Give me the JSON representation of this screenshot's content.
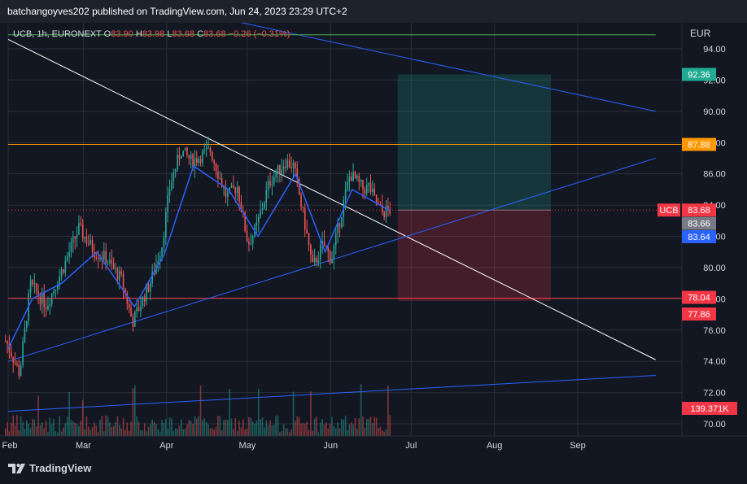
{
  "header": {
    "publisher_text": "batchangoyves202 published on TradingView.com, Jun 24, 2023 23:29 UTC+2"
  },
  "legend": {
    "symbol": "UCB, 1h, EURONEXT",
    "o_label": "O",
    "o_value": "83.90",
    "h_label": "H",
    "h_value": "83.98",
    "l_label": "L",
    "l_value": "83.68",
    "c_label": "C",
    "c_value": "83.68",
    "change": "−0.26 (−0.31%)"
  },
  "footer": {
    "brand": "TradingView"
  },
  "colors": {
    "up": "#26a69a",
    "down": "#ef5350",
    "background": "#131722",
    "grid": "#2a2e39",
    "axis_text": "#d1d4dc",
    "orange": "#ff9800",
    "red_line": "#f23645",
    "blue_line": "#2962ff",
    "white_line": "#ffffff",
    "green_line": "#4caf50"
  },
  "chart_data": {
    "type": "candlestick",
    "symbol": "UCB",
    "interval": "1h",
    "exchange": "EURONEXT",
    "currency": "EUR",
    "y_ticks": [
      "94.00",
      "92.00",
      "90.00",
      "88.00",
      "86.00",
      "84.00",
      "82.00",
      "80.00",
      "78.00",
      "76.00",
      "74.00",
      "72.00",
      "70.00"
    ],
    "x_ticks": [
      "Feb",
      "Mar",
      "Apr",
      "May",
      "Jun",
      "Jul",
      "Aug",
      "Sep"
    ],
    "ylim": [
      69.5,
      95.0
    ],
    "price_series_approx": [
      [
        "2023-02-01",
        75.3
      ],
      [
        "2023-02-06",
        73.2
      ],
      [
        "2023-02-10",
        78.9
      ],
      [
        "2023-02-16",
        77.6
      ],
      [
        "2023-02-21",
        79.5
      ],
      [
        "2023-02-28",
        82.5
      ],
      [
        "2023-03-06",
        81.0
      ],
      [
        "2023-03-10",
        80.6
      ],
      [
        "2023-03-16",
        79.2
      ],
      [
        "2023-03-20",
        76.5
      ],
      [
        "2023-03-27",
        79.2
      ],
      [
        "2023-03-31",
        81.5
      ],
      [
        "2023-04-03",
        85.3
      ],
      [
        "2023-04-07",
        87.5
      ],
      [
        "2023-04-11",
        86.8
      ],
      [
        "2023-04-18",
        87.5
      ],
      [
        "2023-04-24",
        84.5
      ],
      [
        "2023-04-28",
        85.2
      ],
      [
        "2023-05-02",
        81.5
      ],
      [
        "2023-05-05",
        82.5
      ],
      [
        "2023-05-10",
        85.5
      ],
      [
        "2023-05-16",
        86.8
      ],
      [
        "2023-05-19",
        86.5
      ],
      [
        "2023-05-24",
        82.0
      ],
      [
        "2023-05-26",
        80.0
      ],
      [
        "2023-05-30",
        81.5
      ],
      [
        "2023-06-02",
        80.5
      ],
      [
        "2023-06-07",
        84.5
      ],
      [
        "2023-06-09",
        86.0
      ],
      [
        "2023-06-14",
        85.0
      ],
      [
        "2023-06-16",
        85.2
      ],
      [
        "2023-06-19",
        84.0
      ],
      [
        "2023-06-21",
        83.5
      ],
      [
        "2023-06-23",
        83.68
      ]
    ],
    "ma_series_approx": [
      [
        "2023-02-01",
        74.8
      ],
      [
        "2023-02-10",
        78.0
      ],
      [
        "2023-02-21",
        79.0
      ],
      [
        "2023-03-06",
        81.0
      ],
      [
        "2023-03-20",
        77.5
      ],
      [
        "2023-03-31",
        80.8
      ],
      [
        "2023-04-11",
        86.5
      ],
      [
        "2023-04-24",
        85.0
      ],
      [
        "2023-05-05",
        82.0
      ],
      [
        "2023-05-19",
        86.0
      ],
      [
        "2023-05-30",
        81.0
      ],
      [
        "2023-06-09",
        85.0
      ],
      [
        "2023-06-23",
        83.64
      ]
    ],
    "volume_last": "139.371K",
    "horizontal_lines": [
      {
        "value": 87.88,
        "color": "#ff9800"
      },
      {
        "value": 78.04,
        "color": "#f23645"
      }
    ],
    "position_tool": {
      "entry": 83.68,
      "target": 92.36,
      "stop": 77.86
    },
    "trend_lines": [
      {
        "color": "#ffffff",
        "from": [
          "2023-02-01",
          94.6
        ],
        "to": [
          "2023-09-30",
          74.1
        ]
      },
      {
        "color": "#2962ff",
        "from": [
          "2023-02-01",
          74.0
        ],
        "to": [
          "2023-09-30",
          87.0
        ]
      },
      {
        "color": "#2962ff",
        "from": [
          "2023-02-01",
          70.8
        ],
        "to": [
          "2023-09-30",
          73.1
        ]
      },
      {
        "color": "#2962ff",
        "from": [
          "2023-04-20",
          96.0
        ],
        "to": [
          "2023-09-30",
          90.0
        ]
      },
      {
        "color": "#4caf50",
        "from": [
          "2023-02-01",
          94.9
        ],
        "to": [
          "2023-09-30",
          94.9
        ]
      }
    ],
    "price_labels": [
      {
        "text": "92.36",
        "value": 92.36,
        "bg": "#22ab94"
      },
      {
        "text": "87.88",
        "value": 87.88,
        "bg": "#ff9800"
      },
      {
        "text": "83.68",
        "value": 83.68,
        "bg": "#f23645",
        "tag": "UCB"
      },
      {
        "text": "83.66",
        "value": 83.66,
        "bg": "#787b86"
      },
      {
        "text": "83.64",
        "value": 83.64,
        "bg": "#2962ff"
      },
      {
        "text": "78.04",
        "value": 78.04,
        "bg": "#f23645"
      },
      {
        "text": "77.86",
        "value": 77.86,
        "bg": "#f23645"
      },
      {
        "text": "139.371K",
        "bg": "#f23645",
        "volume": true
      }
    ]
  }
}
